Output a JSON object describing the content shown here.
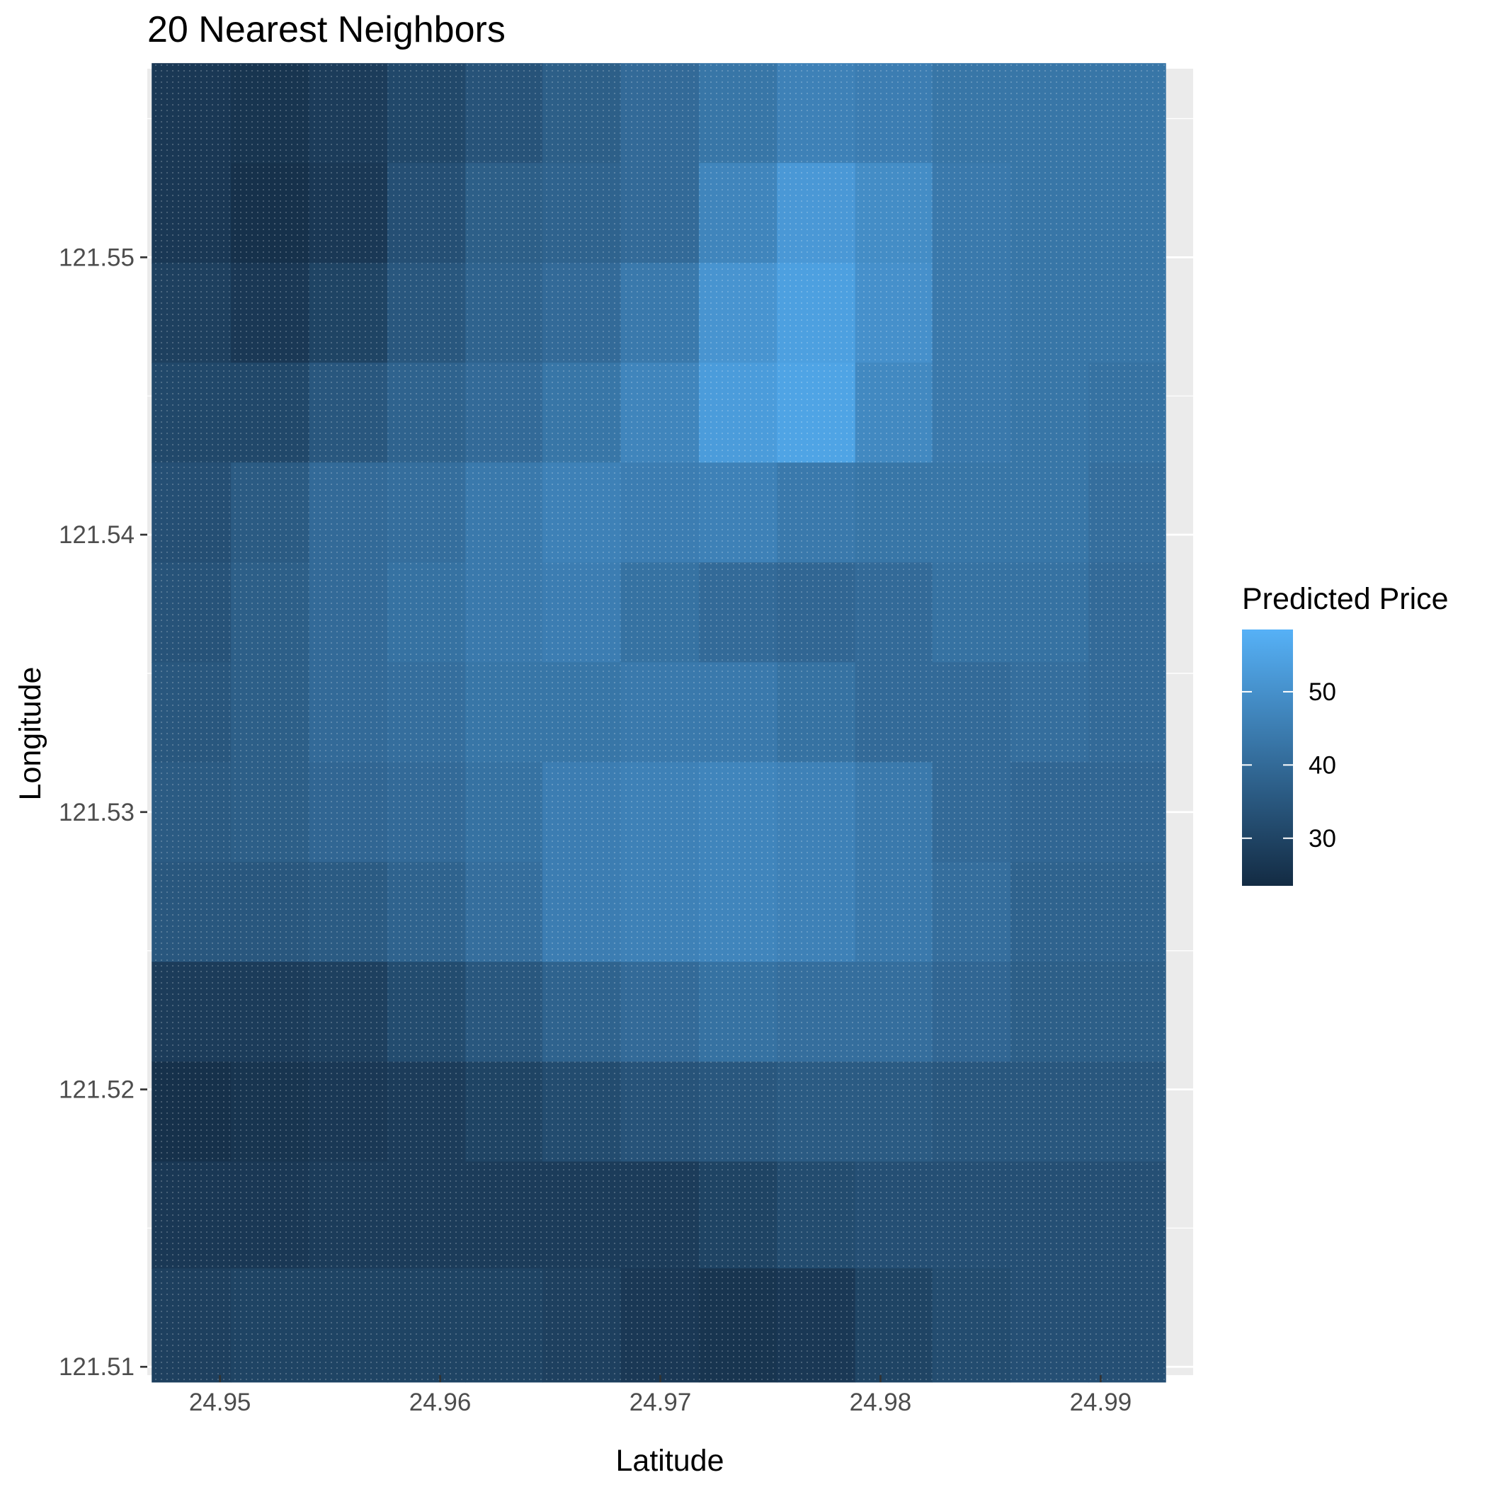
{
  "chart_data": {
    "type": "heatmap",
    "title": "20 Nearest Neighbors",
    "xlabel": "Latitude",
    "ylabel": "Longitude",
    "xlim": [
      24.9467,
      24.9942
    ],
    "ylim": [
      121.5097,
      121.5568
    ],
    "x_ticks": [
      24.95,
      24.96,
      24.97,
      24.98,
      24.99
    ],
    "x_tick_labels": [
      "24.95",
      "24.96",
      "24.97",
      "24.98",
      "24.99"
    ],
    "y_ticks": [
      121.51,
      121.52,
      121.53,
      121.54,
      121.55
    ],
    "y_tick_labels": [
      "121.51",
      "121.52",
      "121.53",
      "121.54",
      "121.55"
    ],
    "grid": true,
    "legend": {
      "title": "Predicted Price",
      "position": "right",
      "min": 23.5,
      "max": 58.5,
      "breaks": [
        30,
        40,
        50
      ],
      "break_labels": [
        "30",
        "40",
        "50"
      ],
      "low_color": "#132B43",
      "high_color": "#56B1F7"
    },
    "grid_x": [
      24.9487,
      24.9523,
      24.9558,
      24.9594,
      24.9629,
      24.9664,
      24.97,
      24.9735,
      24.9771,
      24.9806,
      24.9841,
      24.9877,
      24.9912
    ],
    "grid_y": [
      121.5552,
      121.5516,
      121.548,
      121.5444,
      121.5408,
      121.5372,
      121.5336,
      121.53,
      121.5264,
      121.5228,
      121.5192,
      121.5156,
      121.5115
    ],
    "predicted_price": [
      [
        27,
        26,
        28,
        31,
        34,
        37,
        40,
        43,
        46,
        45,
        43,
        43,
        43
      ],
      [
        27,
        25,
        27,
        33,
        37,
        38,
        40,
        47,
        52,
        49,
        44,
        43,
        43
      ],
      [
        29,
        27,
        30,
        35,
        38,
        40,
        44,
        51,
        54,
        50,
        44,
        43,
        43
      ],
      [
        31,
        31,
        35,
        38,
        40,
        43,
        47,
        53,
        55,
        48,
        44,
        43,
        42
      ],
      [
        33,
        36,
        40,
        41,
        44,
        46,
        45,
        46,
        44,
        43,
        43,
        43,
        41
      ],
      [
        34,
        37,
        40,
        42,
        44,
        45,
        42,
        40,
        39,
        40,
        42,
        42,
        40
      ],
      [
        35,
        37,
        40,
        41,
        43,
        43,
        44,
        44,
        42,
        40,
        40,
        41,
        40
      ],
      [
        36,
        37,
        39,
        40,
        42,
        45,
        46,
        47,
        46,
        44,
        40,
        39,
        39
      ],
      [
        35,
        35,
        36,
        38,
        41,
        45,
        46,
        47,
        46,
        44,
        41,
        38,
        38
      ],
      [
        28,
        28,
        29,
        32,
        35,
        38,
        40,
        42,
        41,
        41,
        39,
        37,
        37
      ],
      [
        25,
        26,
        27,
        28,
        30,
        32,
        34,
        35,
        36,
        36,
        35,
        35,
        35
      ],
      [
        27,
        27,
        28,
        28,
        28,
        28,
        28,
        30,
        32,
        33,
        33,
        33,
        33
      ],
      [
        29,
        30,
        30,
        30,
        30,
        29,
        27,
        26,
        27,
        30,
        32,
        33,
        33
      ]
    ]
  }
}
